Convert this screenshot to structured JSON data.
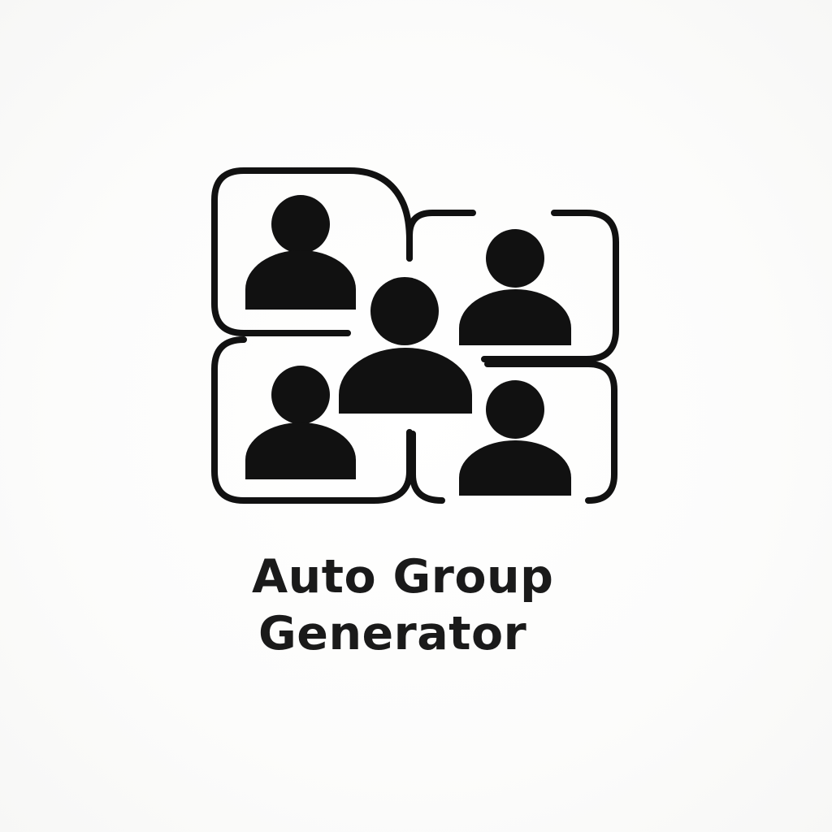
{
  "logo": {
    "icon": "group-people-icon",
    "wordmark_line1": "Auto Group",
    "wordmark_line2": "Generator"
  },
  "colors": {
    "ink": "#111111",
    "background": "#fbfbfa"
  }
}
